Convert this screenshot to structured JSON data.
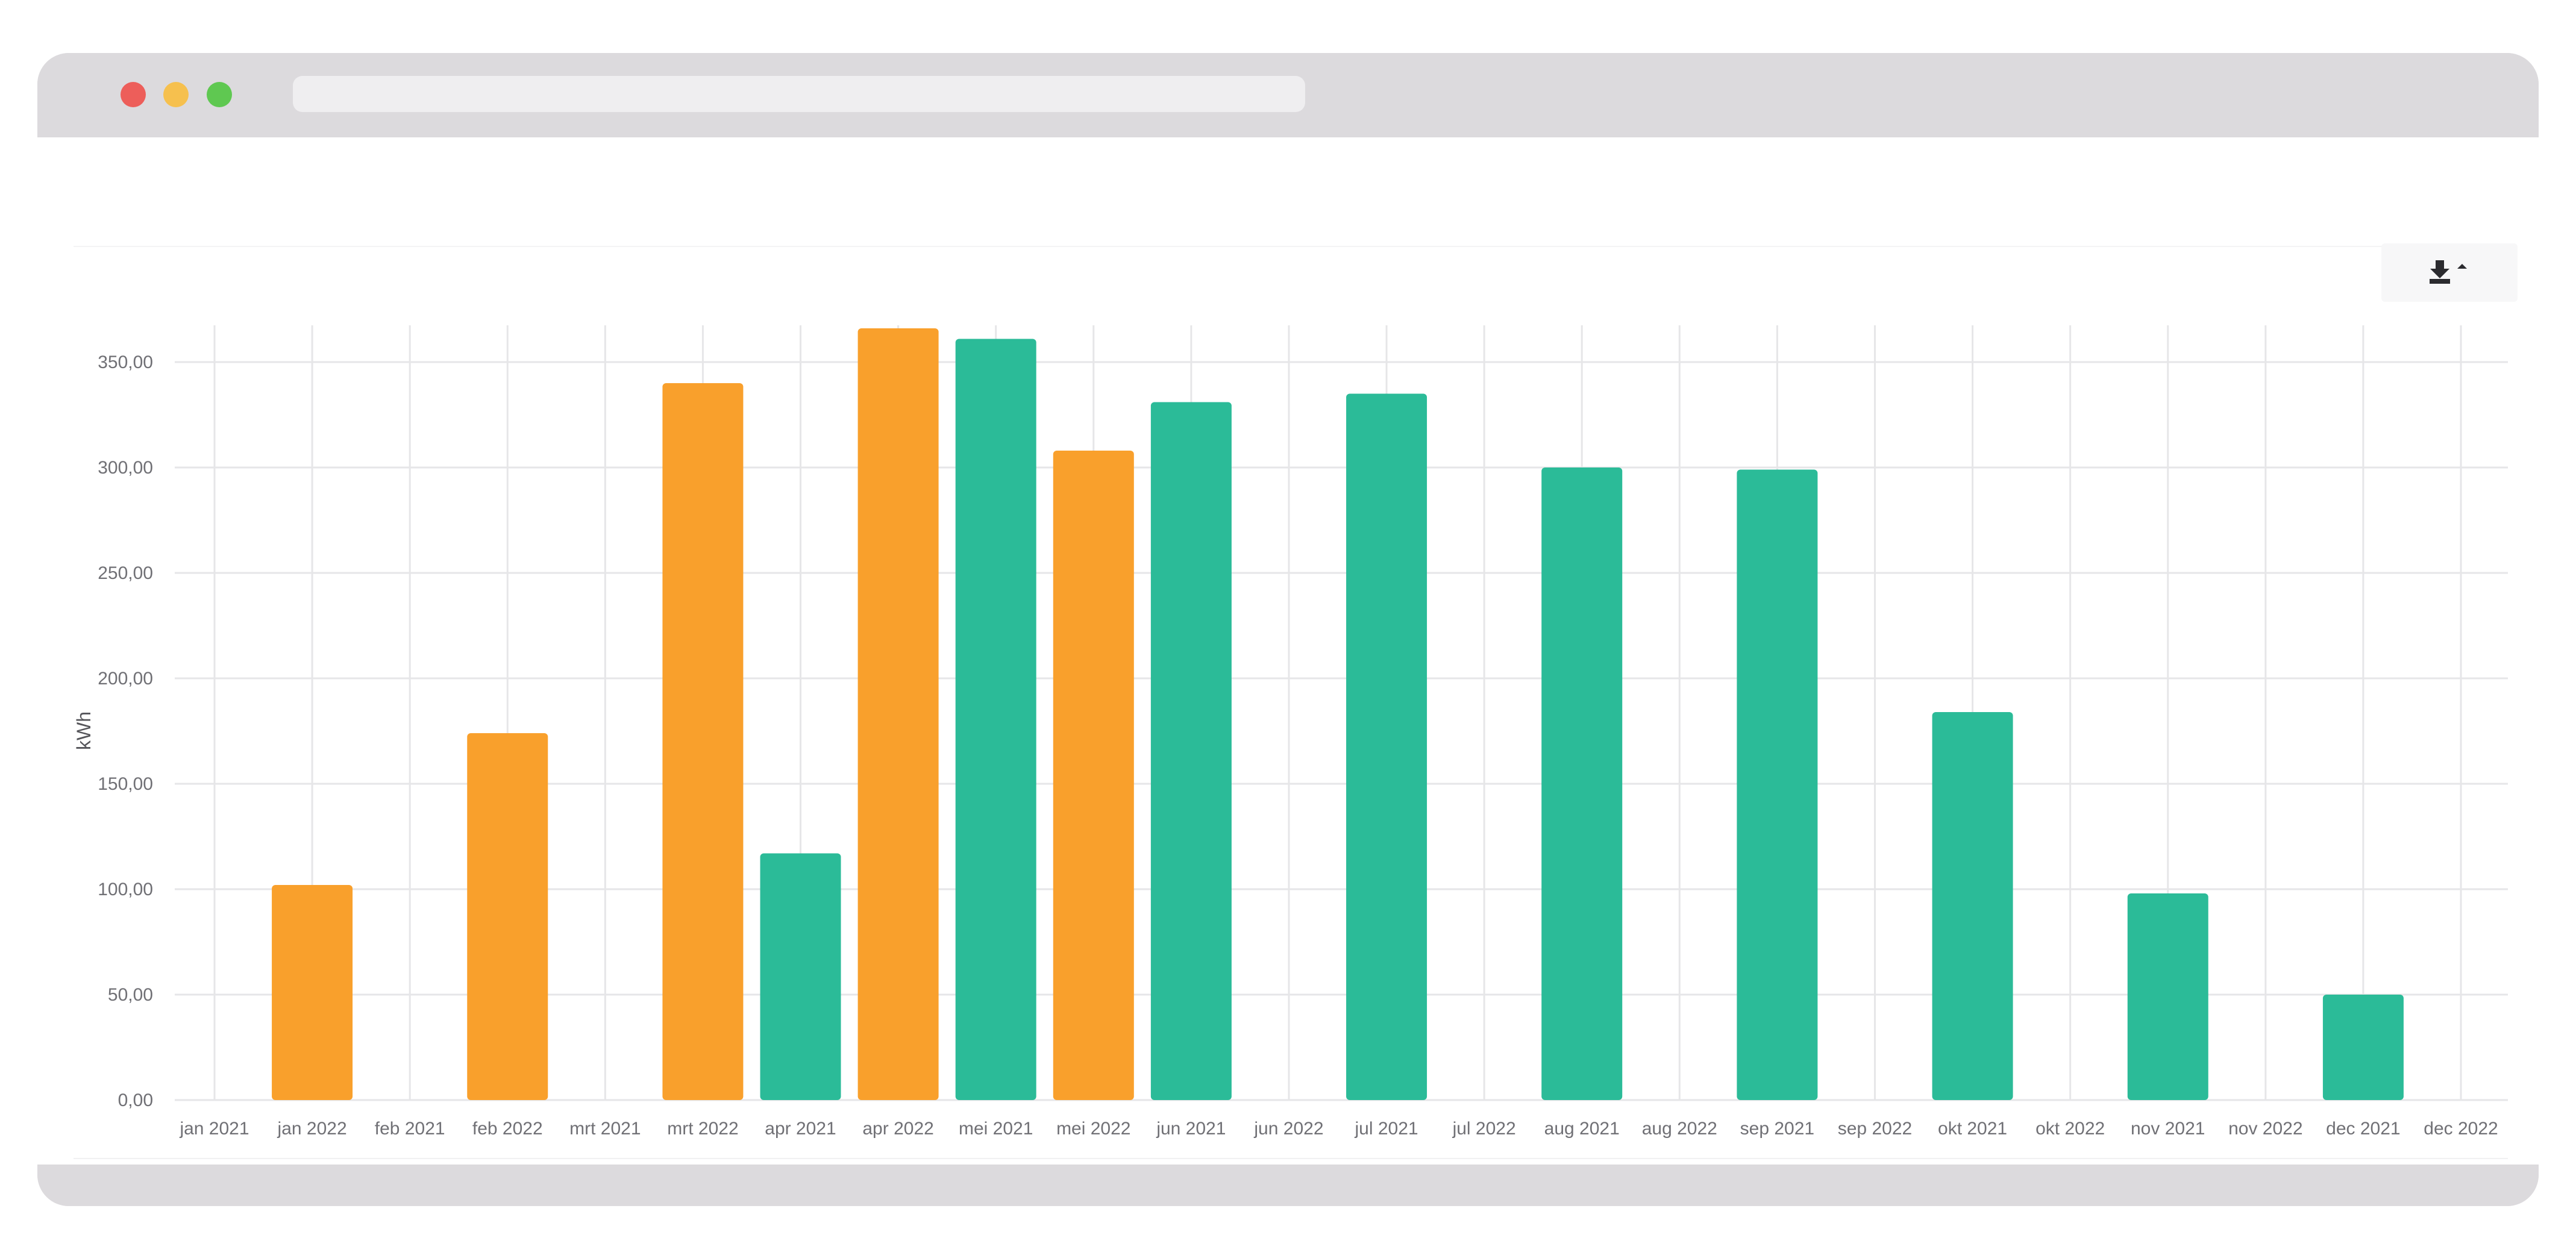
{
  "colors": {
    "orange": "#f9a02c",
    "green": "#2bbb98",
    "grid": "#e6e6e8",
    "window_chrome": "#dcdadd"
  },
  "toolbar": {
    "download_icon": "download-icon"
  },
  "chart_data": {
    "type": "bar",
    "ylabel": "kWh",
    "ylim": [
      0,
      350
    ],
    "yticks": [
      "0,00",
      "50,00",
      "100,00",
      "150,00",
      "200,00",
      "250,00",
      "300,00",
      "350,00"
    ],
    "categories": [
      "jan 2021",
      "jan 2022",
      "feb 2021",
      "feb 2022",
      "mrt 2021",
      "mrt 2022",
      "apr 2021",
      "apr 2022",
      "mei 2021",
      "mei 2022",
      "jun 2021",
      "jun 2022",
      "jul 2021",
      "jul 2022",
      "aug 2021",
      "aug 2022",
      "sep 2021",
      "sep 2022",
      "okt 2021",
      "okt 2022",
      "nov 2021",
      "nov 2022",
      "dec 2021",
      "dec 2022"
    ],
    "series": [
      {
        "values": [
          0,
          0,
          0,
          0,
          0,
          0,
          117,
          0,
          361,
          0,
          331,
          0,
          335,
          0,
          300,
          0,
          299,
          0,
          184,
          0,
          98,
          0,
          50,
          0
        ],
        "color": "#2bbb98"
      },
      {
        "values": [
          0,
          102,
          0,
          174,
          0,
          340,
          0,
          366,
          0,
          308,
          0,
          0,
          0,
          0,
          0,
          0,
          0,
          0,
          0,
          0,
          0,
          0,
          0,
          0
        ],
        "color": "#f9a02c"
      }
    ],
    "grid": true,
    "legend": "none"
  }
}
